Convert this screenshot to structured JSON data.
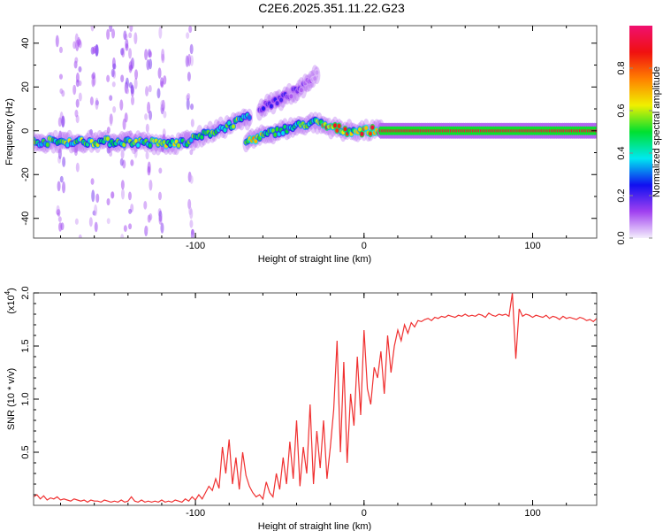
{
  "title": "C2E6.2025.351.11.22.G23",
  "chart_data": [
    {
      "type": "heatmap",
      "name": "spectrogram",
      "xlabel": "Height of straight line (km)",
      "ylabel": "Frequency (Hz)",
      "xlim": [
        -196,
        138
      ],
      "ylim": [
        -49,
        48
      ],
      "xticks": [
        -100,
        0,
        100
      ],
      "xtick_labels": [
        "-100",
        "0",
        "100"
      ],
      "yticks": [
        -40,
        -20,
        0,
        20,
        40
      ],
      "ytick_labels": [
        "-40",
        "-20",
        "0",
        "20",
        "40"
      ],
      "colorbar": {
        "label": "Normalized spectral amplitude",
        "range": [
          0,
          1
        ],
        "ticks": [
          0.0,
          0.2,
          0.4,
          0.6,
          0.8
        ],
        "tick_labels": [
          "0.0",
          "0.2",
          "0.4",
          "0.6",
          "0.8"
        ],
        "colors": [
          "#f4eefc",
          "#a040f0",
          "#1010f0",
          "#00e8f0",
          "#00e030",
          "#f0f000",
          "#ff8000",
          "#f01010",
          "#f01070"
        ]
      },
      "tracks": [
        {
          "name": "low-flat",
          "points": [
            [
              -196,
              -5,
              0.55
            ],
            [
              -170,
              -5,
              0.6
            ],
            [
              -140,
              -5,
              0.55
            ],
            [
              -115,
              -6,
              0.65
            ],
            [
              -105,
              -5,
              0.6
            ]
          ]
        },
        {
          "name": "upper-rising",
          "points": [
            [
              -105,
              -5,
              0.6
            ],
            [
              -95,
              -2,
              0.5
            ],
            [
              -85,
              1,
              0.6
            ],
            [
              -75,
              4,
              0.55
            ],
            [
              -68,
              6,
              0.5
            ]
          ]
        },
        {
          "name": "main-rising",
          "points": [
            [
              -70,
              -5,
              0.75
            ],
            [
              -55,
              -1,
              0.55
            ],
            [
              -40,
              2,
              0.55
            ],
            [
              -30,
              4,
              0.55
            ],
            [
              -22,
              2,
              0.85
            ],
            [
              -10,
              0,
              0.8
            ],
            [
              0,
              0,
              0.85
            ],
            [
              10,
              0,
              0.85
            ]
          ]
        },
        {
          "name": "steady-line",
          "points": [
            [
              10,
              0,
              0.92
            ],
            [
              138,
              0,
              0.92
            ]
          ]
        },
        {
          "name": "faint-branch",
          "points": [
            [
              -62,
              10,
              0.22
            ],
            [
              -48,
              15,
              0.2
            ],
            [
              -36,
              20,
              0.15
            ],
            [
              -28,
              26,
              0.08
            ]
          ]
        }
      ],
      "streaks": [
        -170,
        -160,
        -150,
        -142,
        -137,
        -128,
        -120,
        -103,
        -180
      ]
    },
    {
      "type": "line",
      "name": "snr",
      "xlabel": "Height of straight line (km)",
      "ylabel": "SNR (10 * v/v)",
      "scale_label": "(x10",
      "scale_exp": "4",
      "xlim": [
        -196,
        138
      ],
      "ylim": [
        0,
        2.0
      ],
      "xticks": [
        -100,
        0,
        100
      ],
      "xtick_labels": [
        "-100",
        "0",
        "100"
      ],
      "yticks": [
        0.5,
        1.0,
        1.5,
        2.0
      ],
      "ytick_labels": [
        "0.5",
        "1.0",
        "1.5",
        "2.0"
      ],
      "color": "#f03030",
      "x_start": -196,
      "x_step": 2,
      "values": [
        0.08,
        0.1,
        0.06,
        0.09,
        0.05,
        0.07,
        0.06,
        0.08,
        0.05,
        0.06,
        0.05,
        0.04,
        0.06,
        0.05,
        0.04,
        0.05,
        0.03,
        0.05,
        0.04,
        0.04,
        0.03,
        0.05,
        0.04,
        0.03,
        0.04,
        0.03,
        0.05,
        0.03,
        0.04,
        0.08,
        0.04,
        0.03,
        0.05,
        0.03,
        0.04,
        0.03,
        0.04,
        0.03,
        0.05,
        0.03,
        0.04,
        0.03,
        0.05,
        0.04,
        0.03,
        0.06,
        0.04,
        0.08,
        0.05,
        0.1,
        0.06,
        0.12,
        0.18,
        0.14,
        0.25,
        0.16,
        0.55,
        0.3,
        0.62,
        0.2,
        0.45,
        0.15,
        0.5,
        0.28,
        0.18,
        0.12,
        0.08,
        0.1,
        0.06,
        0.22,
        0.12,
        0.08,
        0.3,
        0.15,
        0.45,
        0.2,
        0.6,
        0.25,
        0.8,
        0.18,
        0.55,
        0.3,
        0.95,
        0.2,
        0.7,
        0.35,
        0.8,
        0.25,
        0.55,
        0.9,
        1.55,
        0.5,
        1.35,
        0.4,
        1.05,
        0.75,
        1.4,
        0.85,
        1.65,
        1.1,
        0.95,
        1.3,
        1.2,
        1.45,
        1.05,
        1.6,
        1.25,
        1.5,
        1.65,
        1.55,
        1.7,
        1.62,
        1.72,
        1.68,
        1.74,
        1.73,
        1.75,
        1.76,
        1.74,
        1.77,
        1.76,
        1.78,
        1.77,
        1.79,
        1.78,
        1.77,
        1.79,
        1.78,
        1.8,
        1.78,
        1.79,
        1.78,
        1.8,
        1.79,
        1.77,
        1.81,
        1.79,
        1.78,
        1.8,
        1.79,
        1.8,
        1.78,
        2.0,
        1.38,
        1.85,
        1.78,
        1.8,
        1.79,
        1.77,
        1.79,
        1.78,
        1.77,
        1.79,
        1.76,
        1.78,
        1.77,
        1.75,
        1.78,
        1.76,
        1.77,
        1.76,
        1.75,
        1.77,
        1.76,
        1.74,
        1.75,
        1.73,
        1.76
      ]
    }
  ]
}
